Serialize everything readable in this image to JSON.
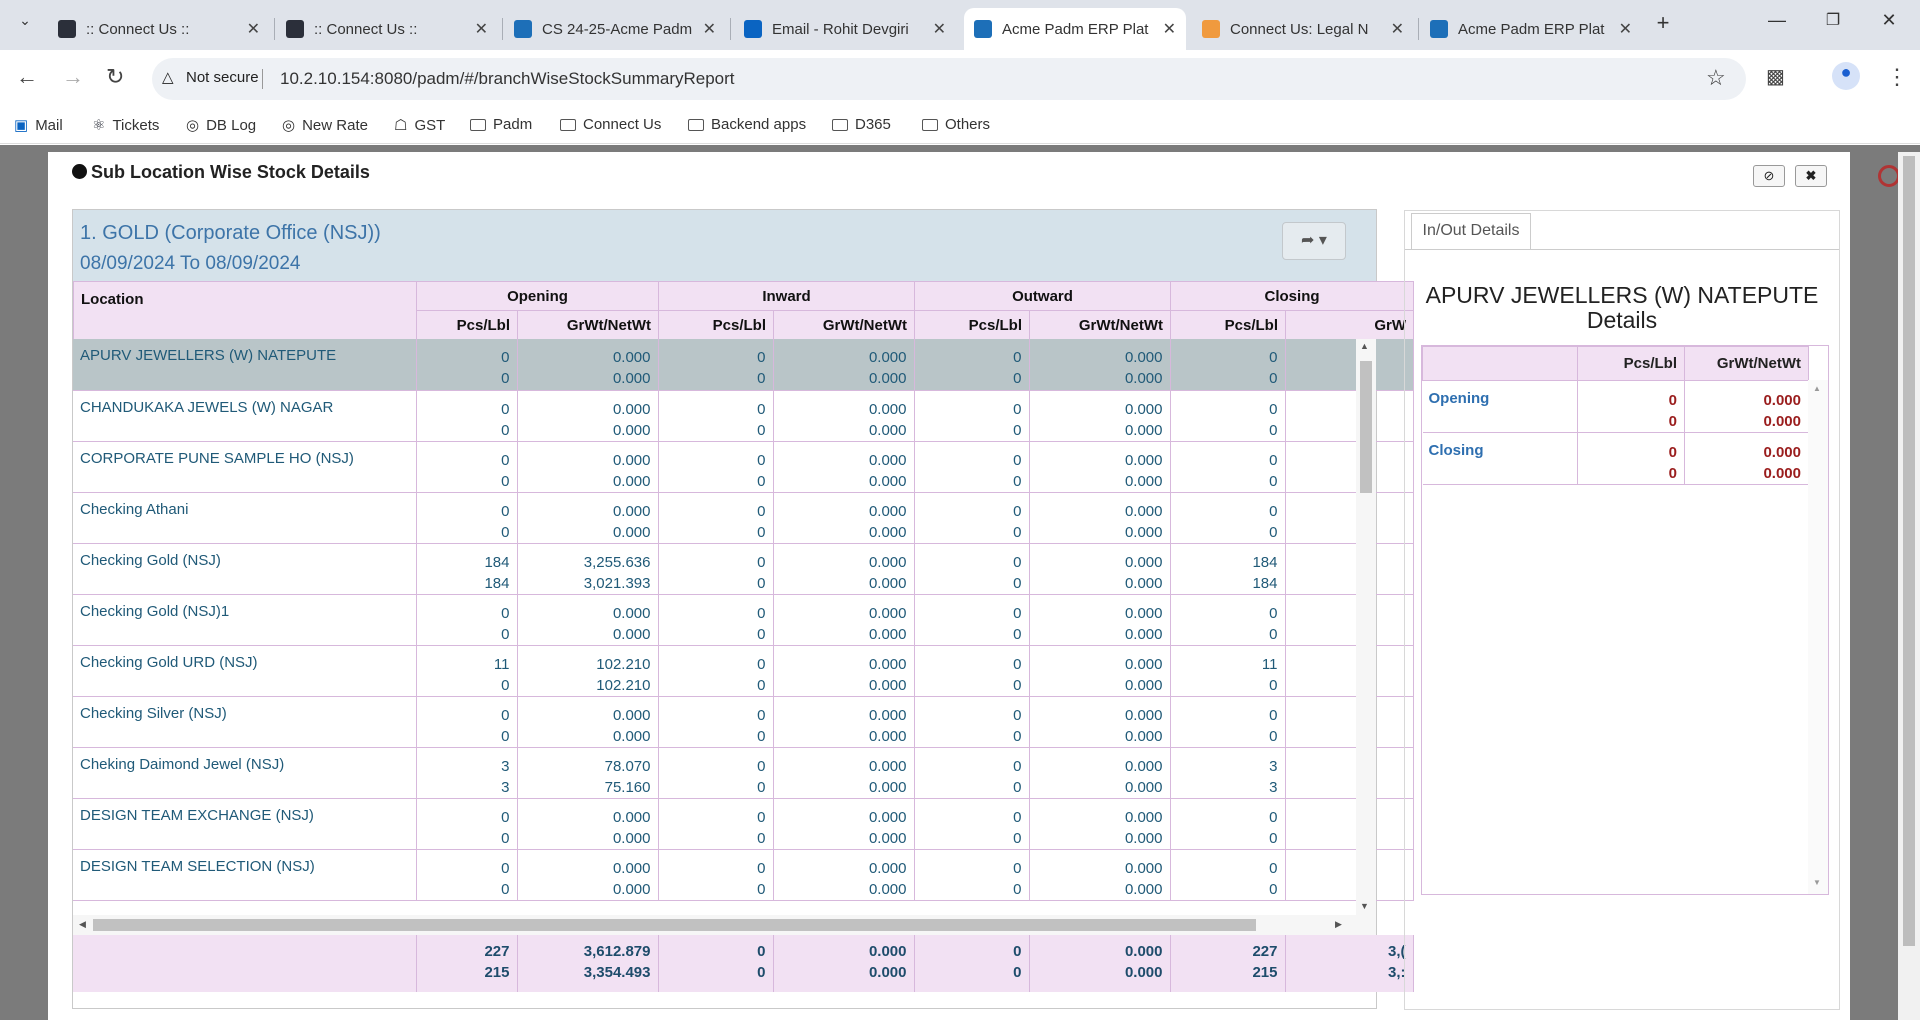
{
  "browser": {
    "tabs": [
      {
        "title": ":: Connect Us ::",
        "favicon_color": "#2b2f3a"
      },
      {
        "title": ":: Connect Us ::",
        "favicon_color": "#2b2f3a"
      },
      {
        "title": "CS 24-25-Acme Padm",
        "favicon_color": "#1d6fb8"
      },
      {
        "title": "Email - Rohit Devgiri",
        "favicon_color": "#0a64c2"
      },
      {
        "title": "Acme Padm ERP Plat",
        "favicon_color": "#1d6fb8"
      },
      {
        "title": "Connect Us: Legal N",
        "favicon_color": "#f09a3e"
      },
      {
        "title": "Acme Padm ERP Plat",
        "favicon_color": "#1d6fb8"
      }
    ],
    "active_tab_index": 4,
    "security_label": "Not secure",
    "url": "10.2.10.154:8080/padm/#/branchWiseStockSummaryReport",
    "bookmarks": [
      {
        "label": "Mail",
        "icon": "outlook-icon"
      },
      {
        "label": "Tickets",
        "icon": "react-icon"
      },
      {
        "label": "DB Log",
        "icon": "globe-icon"
      },
      {
        "label": "New Rate",
        "icon": "globe-icon"
      },
      {
        "label": "GST",
        "icon": "emblem-icon"
      },
      {
        "label": "Padm",
        "icon": "folder-icon"
      },
      {
        "label": "Connect Us",
        "icon": "folder-icon"
      },
      {
        "label": "Backend apps",
        "icon": "folder-icon"
      },
      {
        "label": "D365",
        "icon": "folder-icon"
      },
      {
        "label": "Others",
        "icon": "folder-icon"
      }
    ]
  },
  "modal": {
    "title": "Sub Location Wise Stock Details",
    "report": {
      "heading": "1. GOLD (Corporate Office (NSJ))",
      "date_range": "08/09/2024 To 08/09/2024",
      "header": {
        "location": "Location",
        "groups": [
          "Opening",
          "Inward",
          "Outward",
          "Closing"
        ],
        "sub": [
          "Pcs/Lbl",
          "GrWt/NetWt",
          "Pcs/Lbl",
          "GrWt/NetWt",
          "Pcs/Lbl",
          "GrWt/NetWt",
          "Pcs/Lbl",
          "GrW"
        ]
      },
      "rows": [
        {
          "location": "APURV JEWELLERS (W) NATEPUTE",
          "v": [
            [
              "0",
              "0"
            ],
            [
              "0.000",
              "0.000"
            ],
            [
              "0",
              "0"
            ],
            [
              "0.000",
              "0.000"
            ],
            [
              "0",
              "0"
            ],
            [
              "0.000",
              "0.000"
            ],
            [
              "0",
              "0"
            ]
          ],
          "selected": true
        },
        {
          "location": "CHANDUKAKA JEWELS (W) NAGAR",
          "v": [
            [
              "0",
              "0"
            ],
            [
              "0.000",
              "0.000"
            ],
            [
              "0",
              "0"
            ],
            [
              "0.000",
              "0.000"
            ],
            [
              "0",
              "0"
            ],
            [
              "0.000",
              "0.000"
            ],
            [
              "0",
              "0"
            ]
          ]
        },
        {
          "location": "CORPORATE PUNE SAMPLE HO (NSJ)",
          "v": [
            [
              "0",
              "0"
            ],
            [
              "0.000",
              "0.000"
            ],
            [
              "0",
              "0"
            ],
            [
              "0.000",
              "0.000"
            ],
            [
              "0",
              "0"
            ],
            [
              "0.000",
              "0.000"
            ],
            [
              "0",
              "0"
            ]
          ]
        },
        {
          "location": "Checking Athani",
          "v": [
            [
              "0",
              "0"
            ],
            [
              "0.000",
              "0.000"
            ],
            [
              "0",
              "0"
            ],
            [
              "0.000",
              "0.000"
            ],
            [
              "0",
              "0"
            ],
            [
              "0.000",
              "0.000"
            ],
            [
              "0",
              "0"
            ]
          ]
        },
        {
          "location": "Checking Gold (NSJ)",
          "v": [
            [
              "184",
              "184"
            ],
            [
              "3,255.636",
              "3,021.393"
            ],
            [
              "0",
              "0"
            ],
            [
              "0.000",
              "0.000"
            ],
            [
              "0",
              "0"
            ],
            [
              "0.000",
              "0.000"
            ],
            [
              "184",
              "184"
            ]
          ]
        },
        {
          "location": "Checking Gold (NSJ)1",
          "v": [
            [
              "0",
              "0"
            ],
            [
              "0.000",
              "0.000"
            ],
            [
              "0",
              "0"
            ],
            [
              "0.000",
              "0.000"
            ],
            [
              "0",
              "0"
            ],
            [
              "0.000",
              "0.000"
            ],
            [
              "0",
              "0"
            ]
          ]
        },
        {
          "location": "Checking Gold URD (NSJ)",
          "v": [
            [
              "11",
              "0"
            ],
            [
              "102.210",
              "102.210"
            ],
            [
              "0",
              "0"
            ],
            [
              "0.000",
              "0.000"
            ],
            [
              "0",
              "0"
            ],
            [
              "0.000",
              "0.000"
            ],
            [
              "11",
              "0"
            ]
          ]
        },
        {
          "location": "Checking Silver (NSJ)",
          "v": [
            [
              "0",
              "0"
            ],
            [
              "0.000",
              "0.000"
            ],
            [
              "0",
              "0"
            ],
            [
              "0.000",
              "0.000"
            ],
            [
              "0",
              "0"
            ],
            [
              "0.000",
              "0.000"
            ],
            [
              "0",
              "0"
            ]
          ]
        },
        {
          "location": "Cheking Daimond Jewel (NSJ)",
          "v": [
            [
              "3",
              "3"
            ],
            [
              "78.070",
              "75.160"
            ],
            [
              "0",
              "0"
            ],
            [
              "0.000",
              "0.000"
            ],
            [
              "0",
              "0"
            ],
            [
              "0.000",
              "0.000"
            ],
            [
              "3",
              "3"
            ]
          ]
        },
        {
          "location": "DESIGN TEAM EXCHANGE (NSJ)",
          "v": [
            [
              "0",
              "0"
            ],
            [
              "0.000",
              "0.000"
            ],
            [
              "0",
              "0"
            ],
            [
              "0.000",
              "0.000"
            ],
            [
              "0",
              "0"
            ],
            [
              "0.000",
              "0.000"
            ],
            [
              "0",
              "0"
            ]
          ]
        },
        {
          "location": "DESIGN TEAM SELECTION (NSJ)",
          "v": [
            [
              "0",
              "0"
            ],
            [
              "0.000",
              "0.000"
            ],
            [
              "0",
              "0"
            ],
            [
              "0.000",
              "0.000"
            ],
            [
              "0",
              "0"
            ],
            [
              "0.000",
              "0.000"
            ],
            [
              "0",
              "0"
            ]
          ]
        }
      ],
      "totals": [
        [
          "227",
          "215"
        ],
        [
          "3,612.879",
          "3,354.493"
        ],
        [
          "0",
          "0"
        ],
        [
          "0.000",
          "0.000"
        ],
        [
          "0",
          "0"
        ],
        [
          "0.000",
          "0.000"
        ],
        [
          "227",
          "215"
        ],
        [
          "3,(",
          "3,:"
        ]
      ]
    },
    "side": {
      "tab": "In/Out Details",
      "title": "APURV JEWELLERS (W) NATEPUTE Details",
      "cols": [
        "Pcs/Lbl",
        "GrWt/NetWt"
      ],
      "rows": [
        {
          "label": "Opening",
          "pcs": [
            "0",
            "0"
          ],
          "wt": [
            "0.000",
            "0.000"
          ]
        },
        {
          "label": "Closing",
          "pcs": [
            "0",
            "0"
          ],
          "wt": [
            "0.000",
            "0.000"
          ]
        }
      ]
    }
  }
}
